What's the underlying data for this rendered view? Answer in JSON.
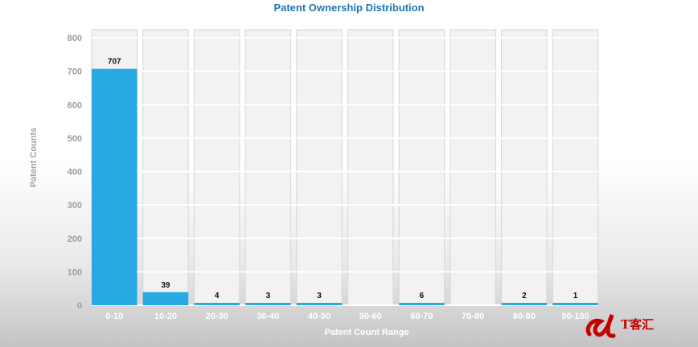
{
  "chart_data": {
    "type": "bar",
    "title": "Patent Ownership Distribution",
    "xlabel": "Patent Count Range",
    "ylabel": "Patent Counts",
    "categories": [
      "0-10",
      "10-20",
      "20-30",
      "30-40",
      "40-50",
      "50-60",
      "60-70",
      "70-80",
      "80-90",
      "90-100"
    ],
    "values": [
      707,
      39,
      4,
      3,
      3,
      0,
      6,
      0,
      2,
      1
    ],
    "data_labels": [
      "707",
      "39",
      "4",
      "3",
      "3",
      "",
      "6",
      "",
      "2",
      "1"
    ],
    "yticks": [
      "0",
      "100",
      "200",
      "300",
      "400",
      "500",
      "600",
      "700",
      "800"
    ],
    "ylim": [
      0,
      800
    ],
    "grid": true,
    "colors": {
      "bar": "#27a9e1",
      "panel": "#f2f2f2",
      "title": "#1f76b5"
    }
  },
  "watermark": {
    "text": "T客汇",
    "logo_icon": "dl-logo-icon"
  }
}
